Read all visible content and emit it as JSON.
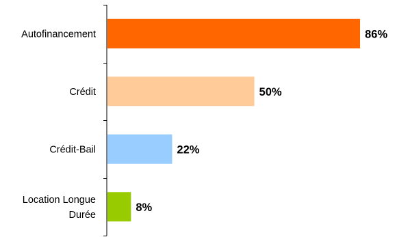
{
  "chart_data": {
    "type": "bar",
    "orientation": "horizontal",
    "title": "",
    "xlabel": "",
    "ylabel": "",
    "xlim": [
      0,
      86
    ],
    "grid": false,
    "legend": "none",
    "categories": [
      "Autofinancement",
      "Crédit",
      "Crédit-Bail",
      "Location Longue Durée"
    ],
    "category_lines": [
      [
        "Autofinancement"
      ],
      [
        "Crédit"
      ],
      [
        "Crédit-Bail"
      ],
      [
        "Location Longue",
        "Durée"
      ]
    ],
    "values": [
      86,
      50,
      22,
      8
    ],
    "value_labels": [
      "86%",
      "50%",
      "22%",
      "8%"
    ],
    "colors": [
      "#ff6600",
      "#ffcc99",
      "#99ccff",
      "#99cc00"
    ]
  }
}
